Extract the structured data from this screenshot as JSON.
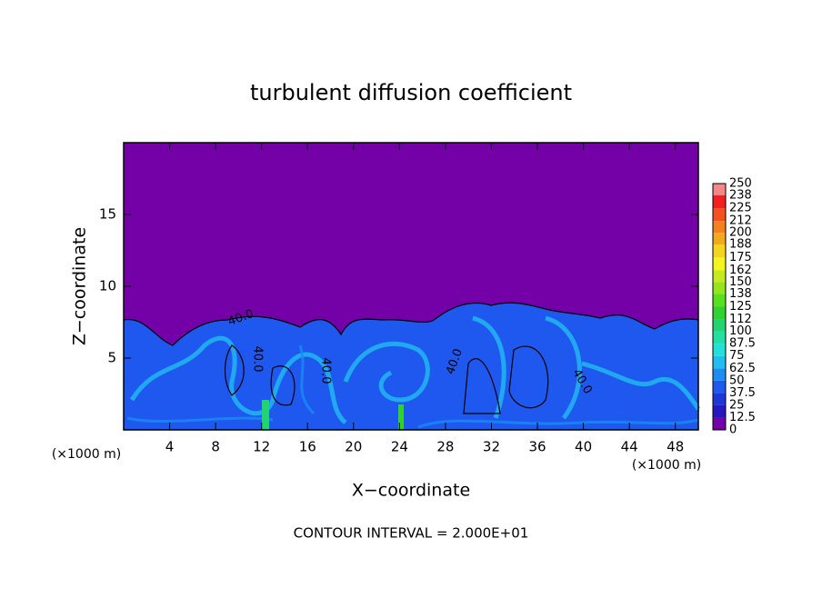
{
  "chart_data": {
    "type": "contour",
    "title": "turbulent diffusion coefficient",
    "xlabel": "X−coordinate",
    "ylabel": "Z−coordinate",
    "x_unit_label": "(×1000 m)",
    "footnote": "CONTOUR INTERVAL = 2.000E+01",
    "xlim": [
      0,
      50
    ],
    "ylim": [
      0,
      20
    ],
    "xticks": [
      4,
      8,
      12,
      16,
      20,
      24,
      28,
      32,
      36,
      40,
      44,
      48
    ],
    "yticks": [
      5,
      10,
      15
    ],
    "contour_labels": [
      "40.0",
      "40.0",
      "40.0",
      "40.0",
      "40.0"
    ],
    "colorbar": {
      "levels": [
        0,
        12.5,
        25,
        37.5,
        50,
        62.5,
        75,
        87.5,
        100,
        112,
        125,
        138,
        150,
        162,
        175,
        188,
        200,
        212,
        225,
        238,
        250
      ],
      "colors": [
        "#7400a8",
        "#2418c0",
        "#1c36d8",
        "#1e58ee",
        "#1a8cf2",
        "#20bef0",
        "#22e0d8",
        "#22e0a4",
        "#22d470",
        "#30d232",
        "#58e020",
        "#94e41e",
        "#c8e81e",
        "#f4f41e",
        "#f4d41e",
        "#f4a81e",
        "#f4801e",
        "#f45020",
        "#f42020",
        "#f48888"
      ]
    }
  }
}
